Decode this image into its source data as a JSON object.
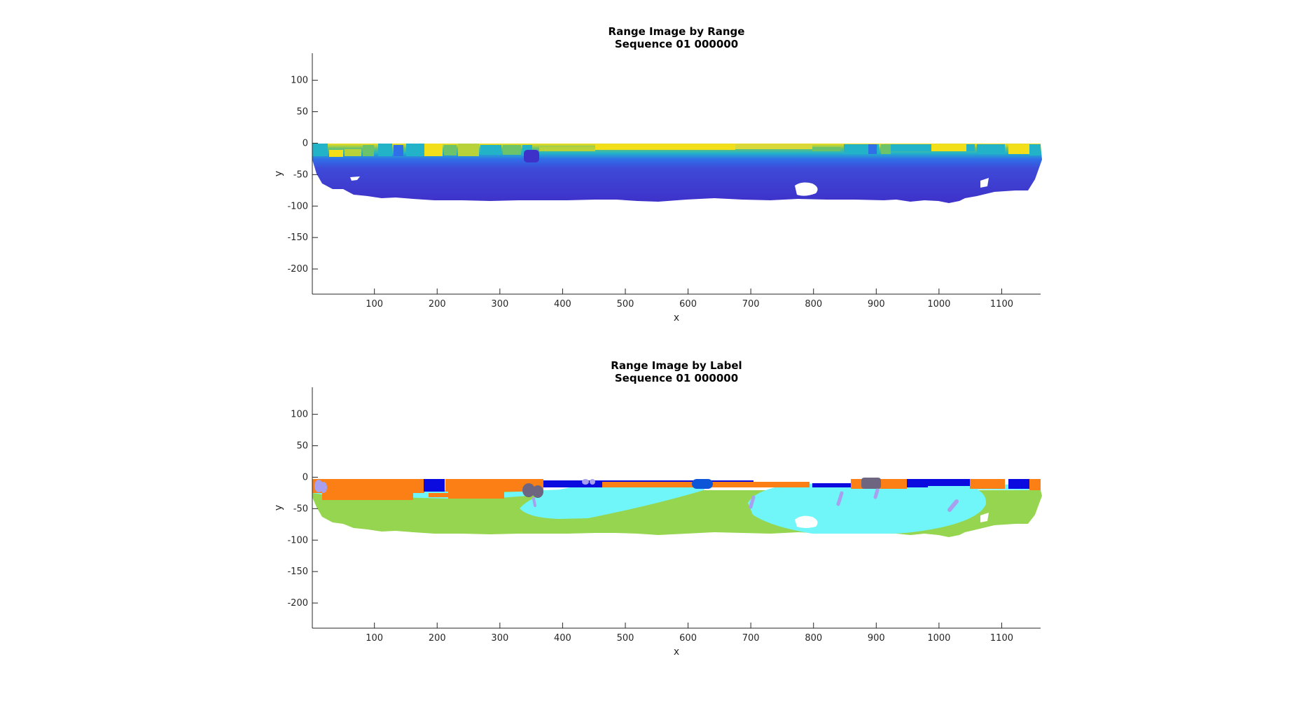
{
  "chart_data": [
    {
      "type": "heatmap",
      "title": "Range Image by Range",
      "subtitle": "Sequence 01 000000",
      "xlabel": "x",
      "ylabel": "y",
      "xlim": [
        1,
        1162
      ],
      "ylim": [
        -240,
        143
      ],
      "xticks": [
        100,
        200,
        300,
        400,
        500,
        600,
        700,
        800,
        900,
        1000,
        1100
      ],
      "yticks": [
        100,
        50,
        0,
        -50,
        -100,
        -150,
        -200
      ],
      "colormap": "parula",
      "grid": false,
      "colors": {
        "near": "#3e31c9",
        "mid_blue": "#2f6fe8",
        "teal": "#22b3c9",
        "green": "#6cc36a",
        "yellow": "#f3de1a"
      }
    },
    {
      "type": "heatmap",
      "title": "Range Image by Label",
      "subtitle": "Sequence 01 000000",
      "xlabel": "x",
      "ylabel": "y",
      "xlim": [
        1,
        1162
      ],
      "ylim": [
        -240,
        143
      ],
      "xticks": [
        100,
        200,
        300,
        400,
        500,
        600,
        700,
        800,
        900,
        1000,
        1100
      ],
      "yticks": [
        100,
        50,
        0,
        -50,
        -100,
        -150,
        -200
      ],
      "grid": false,
      "colors": {
        "green_region": "#96d54f",
        "cyan_region": "#70f5f8",
        "orange_region": "#fb7f14",
        "blue_region": "#0b0be0",
        "object_gray": "#6e6680",
        "pole_lavender": "#a8a0ee"
      }
    }
  ]
}
